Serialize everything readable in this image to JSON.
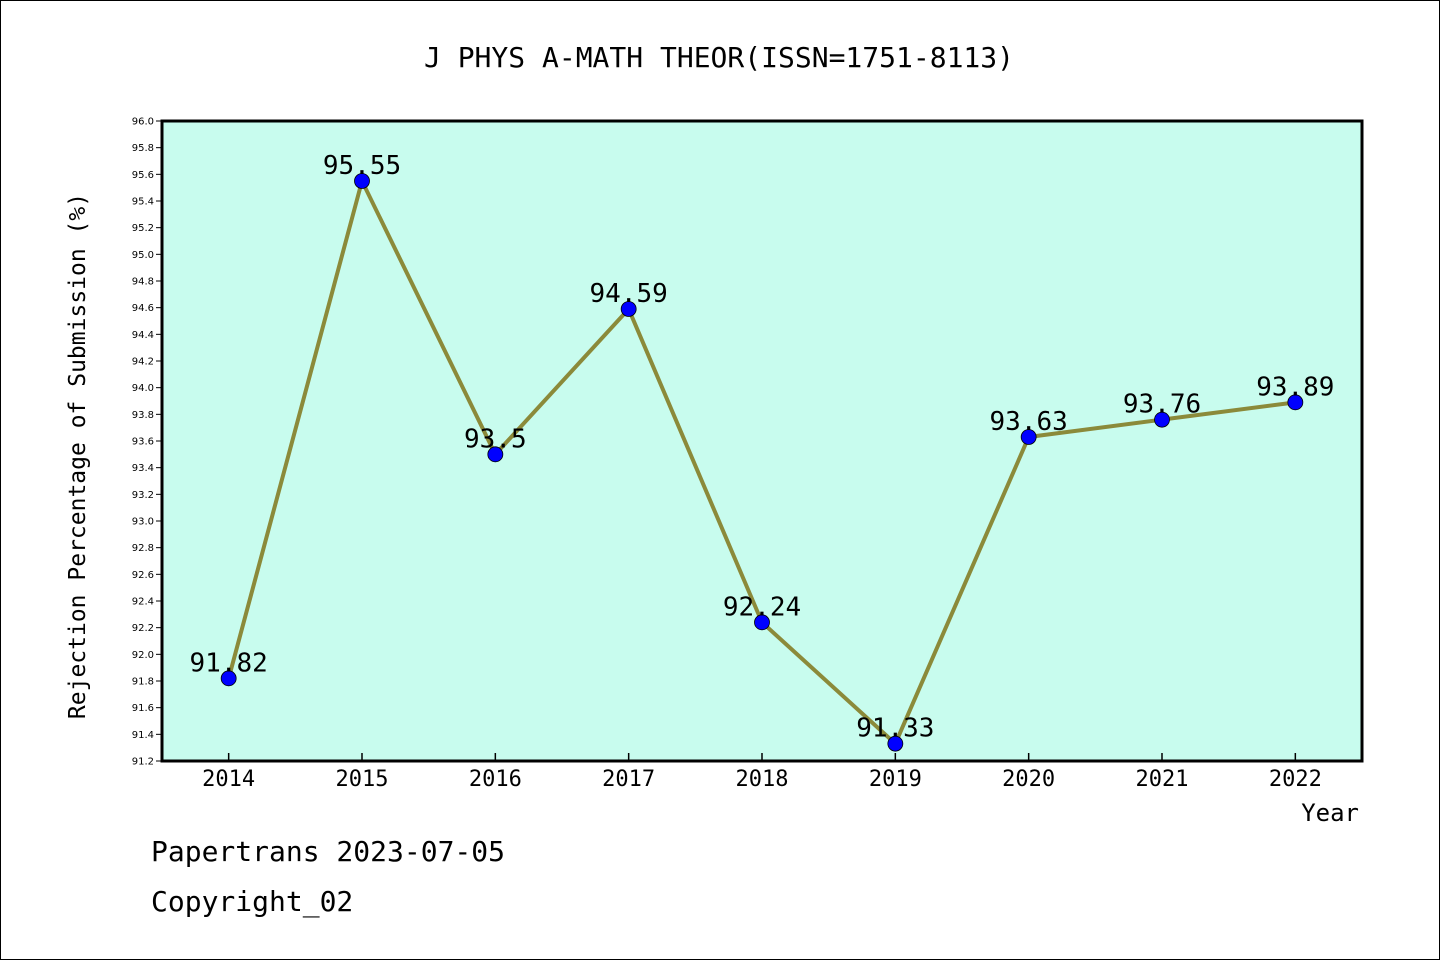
{
  "footer": {
    "line1": "Papertrans 2023-07-05",
    "line2": "Copyright_02"
  },
  "colors": {
    "plot_background": "#c8fcee",
    "line": "#8b8a3a",
    "marker": "#0000ff",
    "axis": "#000000"
  },
  "chart_data": {
    "type": "line",
    "title": "J PHYS A-MATH THEOR(ISSN=1751-8113)",
    "xlabel": "Year",
    "ylabel": "Rejection Percentage of Submission (%)",
    "ylim": [
      91.2,
      96.0
    ],
    "ytick_step": 0.2,
    "yticks": [
      "91.2",
      "91.4",
      "91.6",
      "91.8",
      "92.0",
      "92.2",
      "92.4",
      "92.6",
      "92.8",
      "93.0",
      "93.2",
      "93.4",
      "93.6",
      "93.8",
      "94.0",
      "94.2",
      "94.4",
      "94.6",
      "94.8",
      "95.0",
      "95.2",
      "95.4",
      "95.6",
      "95.8",
      "96.0"
    ],
    "grid": false,
    "categories": [
      "2014",
      "2015",
      "2016",
      "2017",
      "2018",
      "2019",
      "2020",
      "2021",
      "2022"
    ],
    "values": [
      91.82,
      95.55,
      93.5,
      94.59,
      92.24,
      91.33,
      93.63,
      93.76,
      93.89
    ],
    "labels": [
      "91.82",
      "95.55",
      "93.5",
      "94.59",
      "92.24",
      "91.33",
      "93.63",
      "93.76",
      "93.89"
    ]
  }
}
